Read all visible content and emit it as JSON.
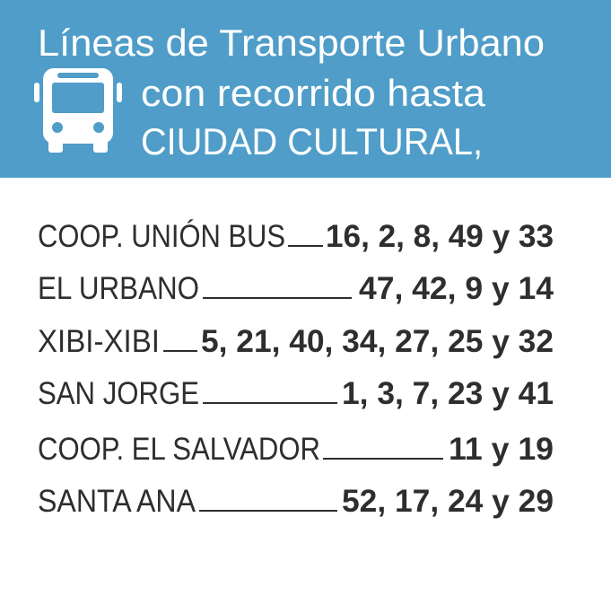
{
  "header": {
    "title_lines": [
      "Líneas de Transporte Urbano",
      "con recorrido hasta",
      "CIUDAD CULTURAL,"
    ]
  },
  "rows": [
    {
      "company": "COOP. UNIÓN BUS",
      "lines": "16, 2, 8, 49 y 33"
    },
    {
      "company": "EL URBANO",
      "lines": "47, 42, 9 y 14"
    },
    {
      "company": "XIBI-XIBI",
      "lines": "5, 21, 40, 34, 27, 25 y 32"
    },
    {
      "company": "SAN JORGE",
      "lines": "1, 3, 7, 23 y 41"
    },
    {
      "company": "COOP. EL SALVADOR",
      "lines": "11 y 19"
    },
    {
      "company": "SANTA ANA",
      "lines": "52, 17, 24 y 29"
    }
  ]
}
